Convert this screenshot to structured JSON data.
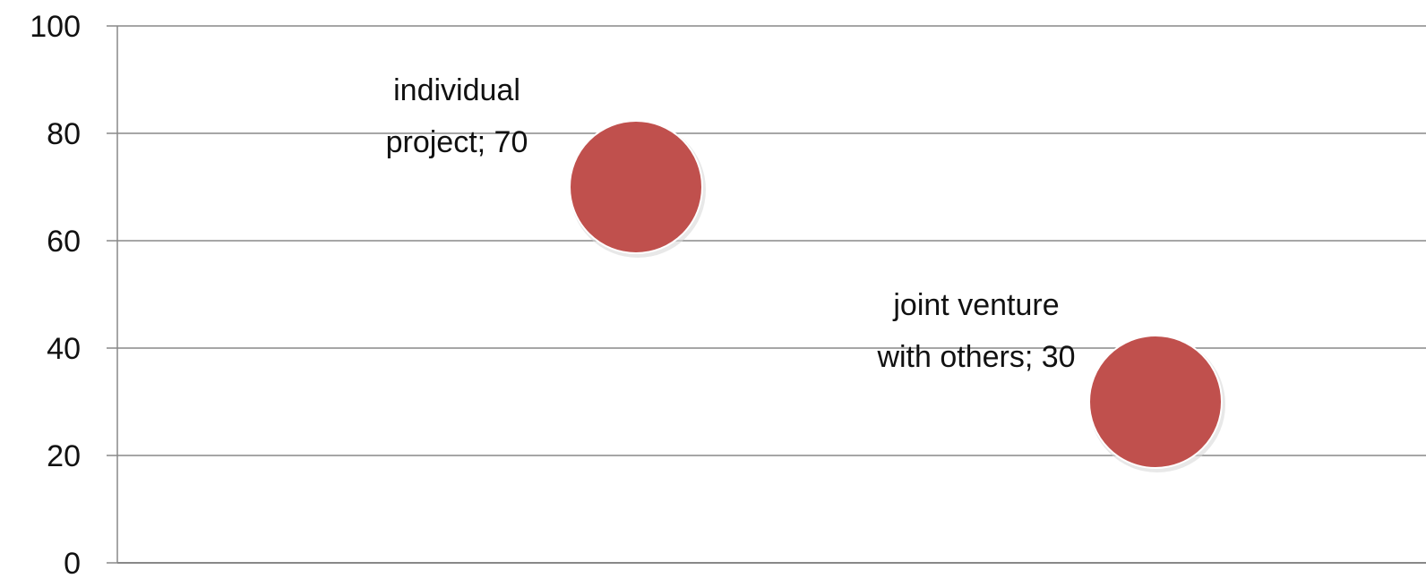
{
  "chart_data": {
    "type": "scatter",
    "ylim": [
      0,
      100
    ],
    "yticks": [
      0,
      20,
      40,
      60,
      80,
      100
    ],
    "grid": true,
    "points": [
      {
        "x": 1,
        "y": 70,
        "label_lines": [
          "individual",
          "project; 70"
        ]
      },
      {
        "x": 2,
        "y": 30,
        "label_lines": [
          "joint venture",
          "with others; 30"
        ]
      }
    ],
    "colors": {
      "marker": "#C0504D",
      "grid": "#888888"
    }
  }
}
